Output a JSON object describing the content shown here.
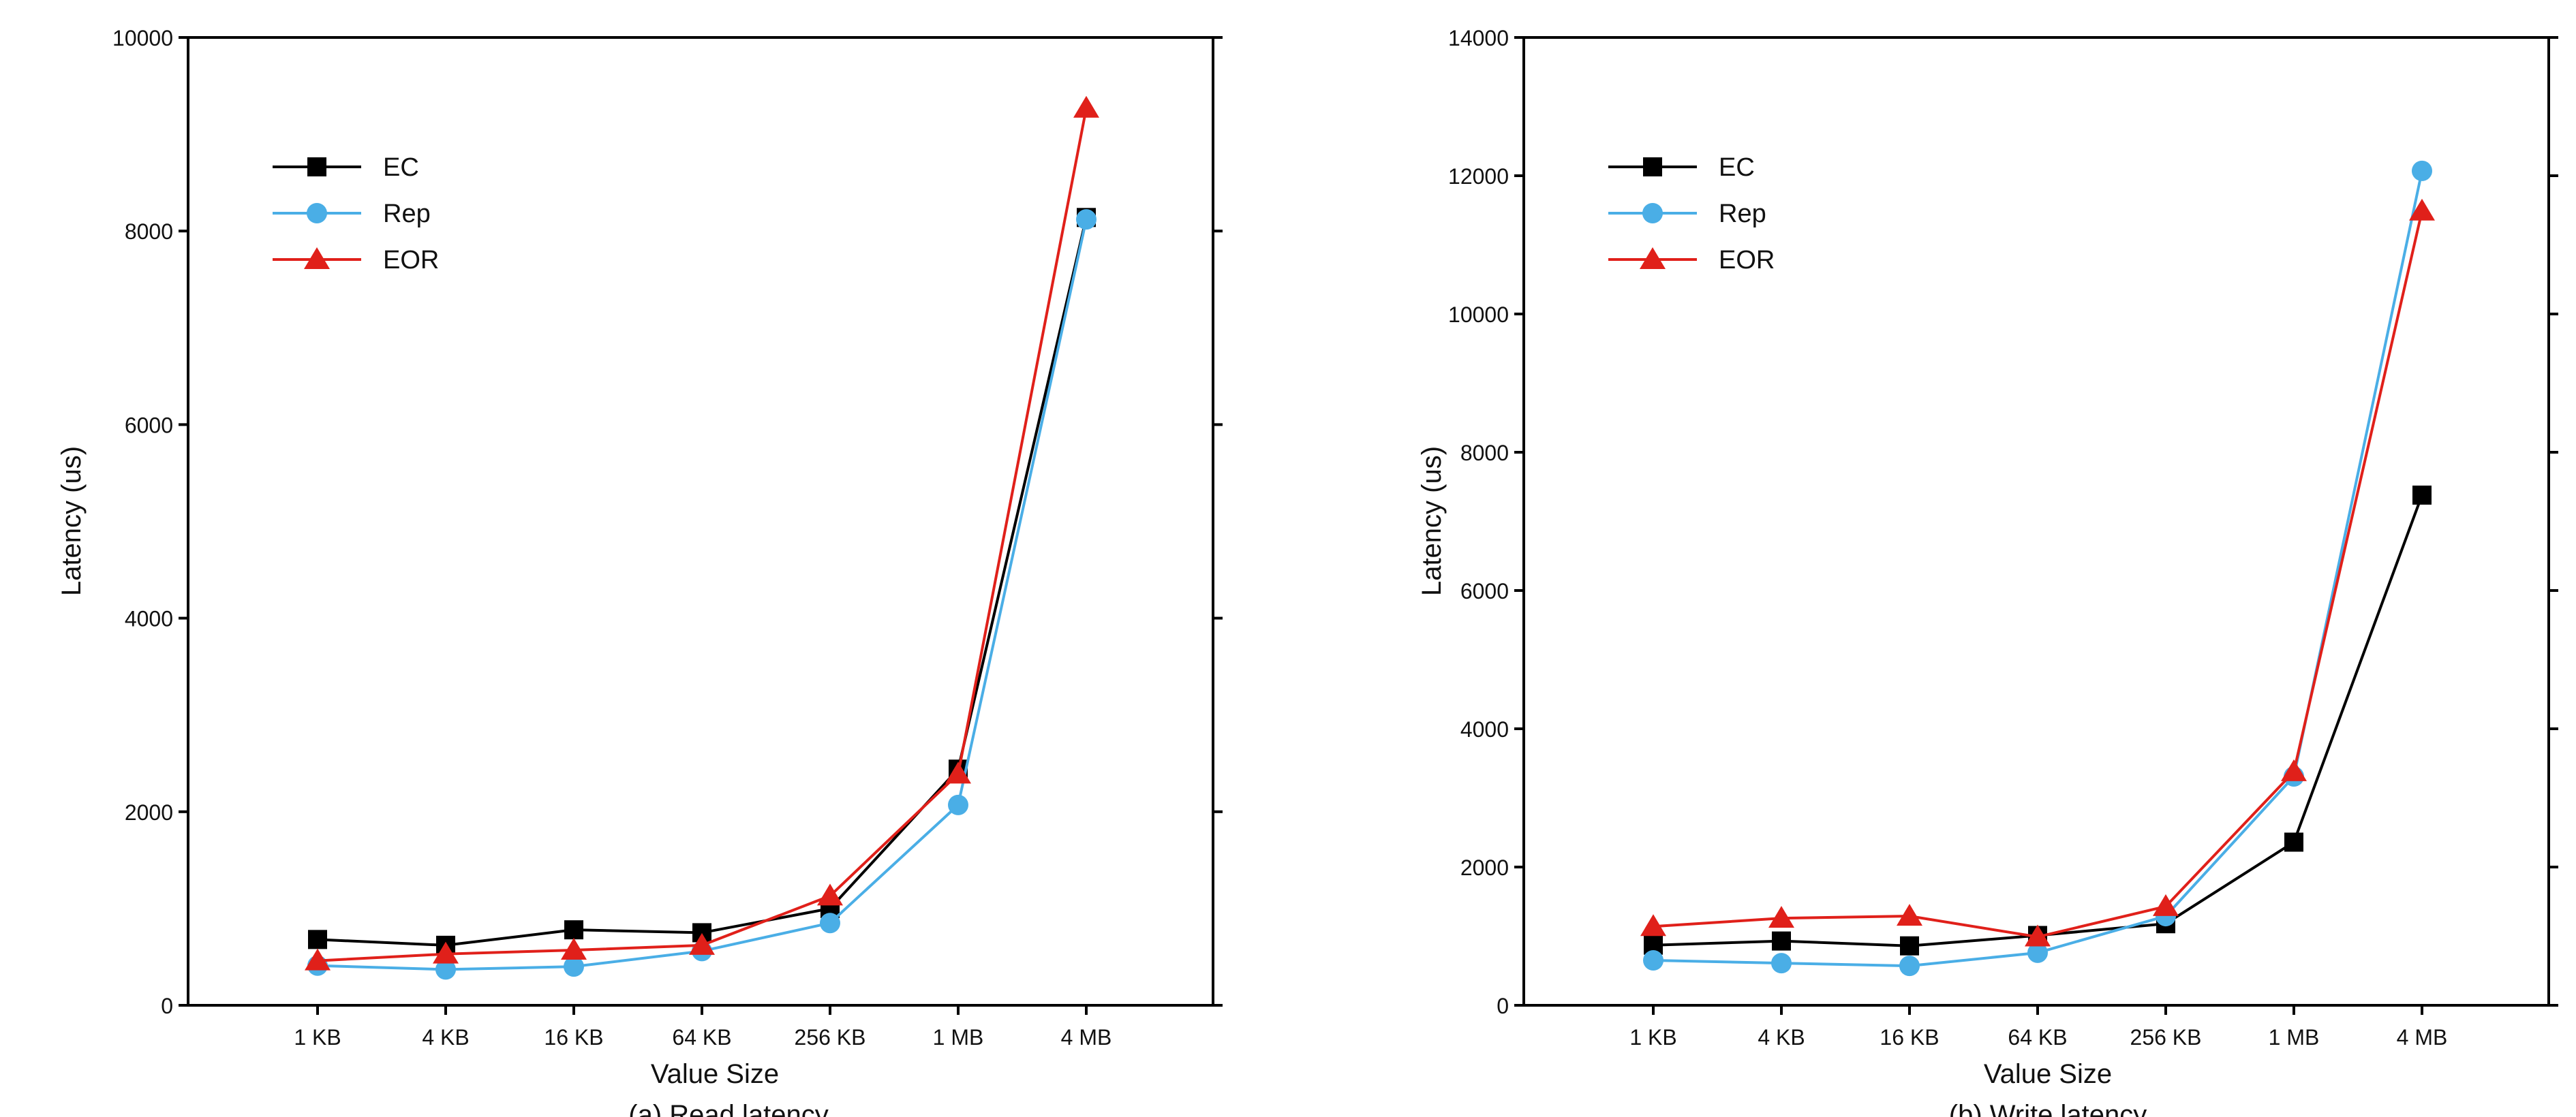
{
  "chart_data": [
    {
      "type": "line",
      "caption": "(a) Read latency",
      "xlabel": "Value Size",
      "ylabel": "Latency (us)",
      "ylim": [
        0,
        10000
      ],
      "yticks": [
        0,
        2000,
        4000,
        6000,
        8000,
        10000
      ],
      "grid": false,
      "legend_position": "top-left",
      "categories": [
        "1 KB",
        "4 KB",
        "16 KB",
        "64 KB",
        "256 KB",
        "1 MB",
        "4 MB"
      ],
      "series": [
        {
          "name": "EC",
          "color": "#000000",
          "marker": "square",
          "values": [
            680,
            620,
            780,
            750,
            1000,
            2440,
            8140
          ]
        },
        {
          "name": "Rep",
          "color": "#4aaee6",
          "marker": "circle",
          "values": [
            410,
            370,
            400,
            560,
            850,
            2070,
            8120
          ]
        },
        {
          "name": "EOR",
          "color": "#e0201a",
          "marker": "triangle",
          "values": [
            460,
            530,
            570,
            620,
            1130,
            2390,
            9270
          ]
        }
      ]
    },
    {
      "type": "line",
      "caption": "(b) Write latency",
      "xlabel": "Value Size",
      "ylabel": "Latency (us)",
      "ylim": [
        0,
        14000
      ],
      "yticks": [
        0,
        2000,
        4000,
        6000,
        8000,
        10000,
        12000,
        14000
      ],
      "grid": false,
      "legend_position": "top-left",
      "categories": [
        "1 KB",
        "4 KB",
        "16 KB",
        "64 KB",
        "256 KB",
        "1 MB",
        "4 MB"
      ],
      "series": [
        {
          "name": "EC",
          "color": "#000000",
          "marker": "square",
          "values": [
            870,
            930,
            860,
            1010,
            1180,
            2360,
            7380
          ]
        },
        {
          "name": "Rep",
          "color": "#4aaee6",
          "marker": "circle",
          "values": [
            650,
            610,
            570,
            760,
            1290,
            3310,
            12070
          ]
        },
        {
          "name": "EOR",
          "color": "#e0201a",
          "marker": "triangle",
          "values": [
            1140,
            1260,
            1290,
            990,
            1430,
            3380,
            11490
          ]
        }
      ]
    }
  ]
}
